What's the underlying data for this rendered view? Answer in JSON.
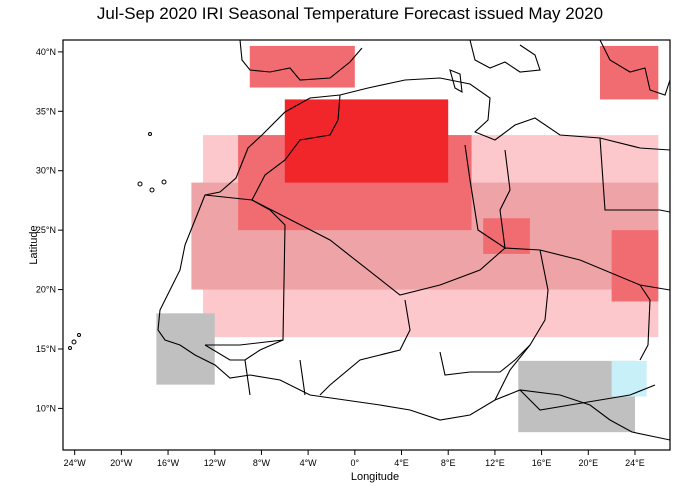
{
  "title": "Jul-Sep 2020 IRI Seasonal Temperature Forecast issued May 2020",
  "xlabel": "Longitude",
  "ylabel": "Latitude",
  "x_ticks": [
    "24°W",
    "20°W",
    "16°W",
    "12°W",
    "8°W",
    "4°W",
    "0°",
    "4°E",
    "8°E",
    "12°E",
    "16°E",
    "20°E",
    "24°E"
  ],
  "y_ticks": [
    "10°N",
    "15°N",
    "20°N",
    "25°N",
    "30°N",
    "35°N",
    "40°N"
  ],
  "colors": {
    "above_light": "#fcc8cc",
    "above_medium": "#eea3a7",
    "above_strong": "#f16c71",
    "above_very_strong": "#f1262b",
    "below_normal": "#c7f0f9",
    "equal_chances": "#c0c0c0"
  },
  "chart_data": {
    "type": "heatmap",
    "variable": "Seasonal Temperature Forecast",
    "period": "Jul-Sep 2020",
    "issued": "May 2020",
    "xlim": [
      -25,
      27
    ],
    "ylim": [
      6.5,
      41
    ],
    "regions": [
      {
        "category": "above_very_strong",
        "lon": [
          -6,
          8
        ],
        "lat": [
          29,
          36
        ]
      },
      {
        "category": "above_strong",
        "lon": [
          -10,
          10
        ],
        "lat": [
          25,
          33
        ]
      },
      {
        "category": "above_strong",
        "lon": [
          -9,
          0
        ],
        "lat": [
          37,
          40.5
        ]
      },
      {
        "category": "above_strong",
        "lon": [
          11,
          15
        ],
        "lat": [
          23,
          26
        ]
      },
      {
        "category": "above_strong",
        "lon": [
          22,
          26
        ],
        "lat": [
          19,
          25
        ]
      },
      {
        "category": "above_strong",
        "lon": [
          21,
          26
        ],
        "lat": [
          36,
          40.5
        ]
      },
      {
        "category": "above_medium",
        "lon": [
          -14,
          26
        ],
        "lat": [
          20,
          29
        ]
      },
      {
        "category": "above_light",
        "lon": [
          -13,
          26
        ],
        "lat": [
          16,
          33
        ]
      },
      {
        "category": "equal_chances",
        "lon": [
          -17,
          -12
        ],
        "lat": [
          12,
          18
        ]
      },
      {
        "category": "equal_chances",
        "lon": [
          14,
          24
        ],
        "lat": [
          8,
          14
        ]
      },
      {
        "category": "below_normal",
        "lon": [
          22,
          25
        ],
        "lat": [
          11,
          14
        ]
      }
    ]
  }
}
